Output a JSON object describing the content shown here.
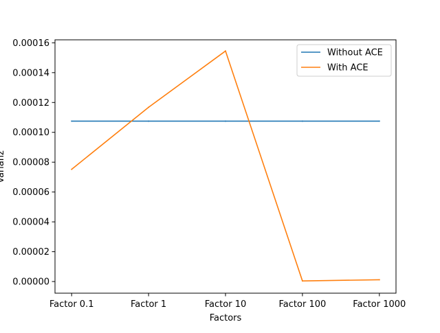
{
  "chart_data": {
    "type": "line",
    "xlabel": "Factors",
    "ylabel": "Varianz",
    "categories": [
      "Factor 0.1",
      "Factor 1",
      "Factor 10",
      "Factor 100",
      "Factor 1000"
    ],
    "yticks": [
      "0.00000",
      "0.00002",
      "0.00004",
      "0.00006",
      "0.00008",
      "0.00010",
      "0.00012",
      "0.00014",
      "0.00016"
    ],
    "ylim": [
      -7.8e-06,
      0.000162
    ],
    "legend_position": "top-right",
    "grid": false,
    "series": [
      {
        "name": "Without ACE",
        "color": "#1f77b4",
        "values": [
          0.0001075,
          0.0001075,
          0.0001075,
          0.0001075,
          0.0001075
        ]
      },
      {
        "name": "With ACE",
        "color": "#ff7f0e",
        "values": [
          7.52e-05,
          0.0001168,
          0.0001545,
          4e-07,
          1.2e-06
        ]
      }
    ]
  }
}
